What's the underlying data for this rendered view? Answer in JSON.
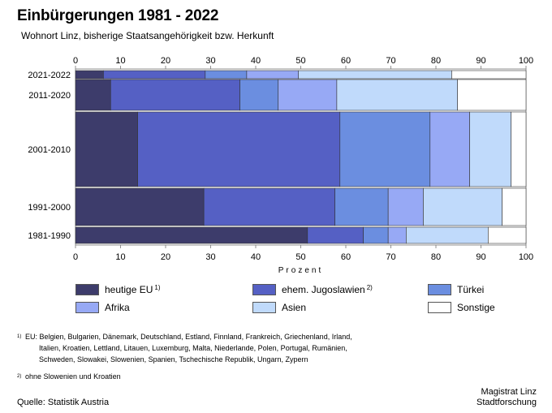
{
  "title": "Einbürgerungen 1981 - 2022",
  "subtitle": "Wohnort Linz, bisherige Staatsangehörigkeit bzw. Herkunft",
  "chart_data": {
    "type": "bar",
    "orientation": "horizontal",
    "stacked": true,
    "variable_width": true,
    "categories": [
      "2021-2022",
      "2011-2020",
      "2001-2010",
      "1991-2000",
      "1981-1990"
    ],
    "xlabel": "Prozent",
    "xlim": [
      0,
      100
    ],
    "xticks": [
      0,
      10,
      20,
      30,
      40,
      50,
      60,
      70,
      80,
      90,
      100
    ],
    "legend_position": "bottom",
    "series": [
      {
        "name": "heutige EU",
        "sup": "1)",
        "color": "#3d3c6b",
        "values": [
          6.2,
          7.8,
          13.8,
          28.5,
          51.5
        ]
      },
      {
        "name": "ehem. Jugoslawien",
        "sup": "2)",
        "color": "#5560c4",
        "values": [
          22.6,
          28.7,
          44.9,
          29.1,
          12.4
        ]
      },
      {
        "name": "Türkei",
        "sup": "",
        "color": "#6b8ee0",
        "values": [
          9.2,
          8.5,
          20.0,
          11.8,
          5.5
        ]
      },
      {
        "name": "Afrika",
        "sup": "",
        "color": "#97a9f5",
        "values": [
          11.5,
          13.0,
          8.8,
          7.8,
          4.0
        ]
      },
      {
        "name": "Asien",
        "sup": "",
        "color": "#c0dafb",
        "values": [
          34.0,
          26.8,
          9.2,
          17.5,
          18.2
        ]
      },
      {
        "name": "Sonstige",
        "sup": "",
        "color": "#ffffff",
        "values": [
          16.5,
          15.2,
          3.3,
          5.3,
          8.4
        ]
      }
    ]
  },
  "footnotes": [
    {
      "mark": "1)",
      "lines": [
        "EU: Belgien, Bulgarien, Dänemark, Deutschland, Estland, Finnland, Frankreich, Griechenland, Irland,",
        "Italien, Kroatien, Lettland, Litauen, Luxemburg, Malta, Niederlande, Polen, Portugal, Rumänien,",
        "Schweden, Slowakei, Slowenien, Spanien, Tschechische Republik, Ungarn, Zypern"
      ]
    },
    {
      "mark": "2)",
      "lines": [
        "ohne Slowenien und Kroatien"
      ]
    }
  ],
  "source": "Quelle: Statistik Austria",
  "organization": [
    "Magistrat Linz",
    "Stadtforschung"
  ]
}
